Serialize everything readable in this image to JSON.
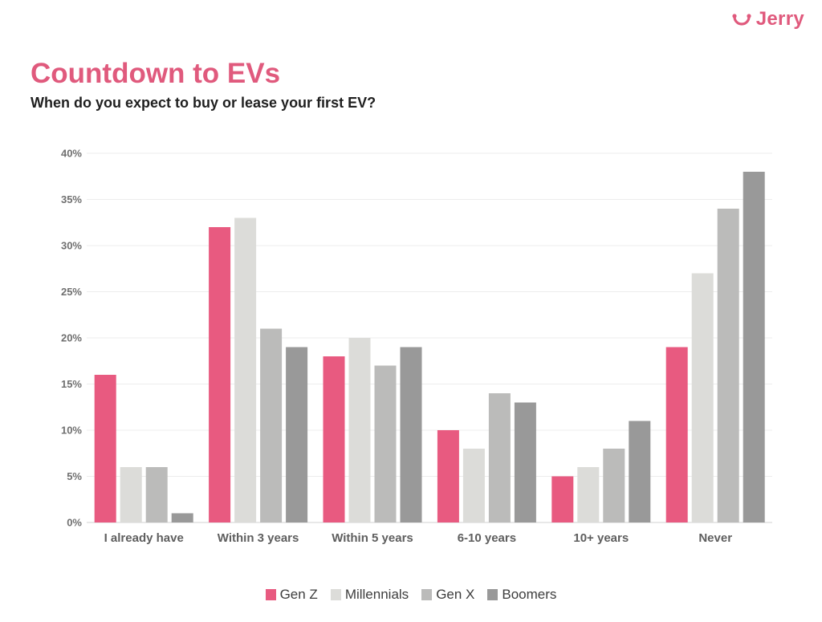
{
  "brand": {
    "name": "Jerry",
    "color": "#e05a7d",
    "icon": "jerry-logo-icon"
  },
  "header": {
    "title": "Countdown to EVs",
    "subtitle": "When do you expect to buy or lease your first EV?"
  },
  "chart_data": {
    "type": "bar",
    "categories": [
      "I already have",
      "Within 3 years",
      "Within 5 years",
      "6-10 years",
      "10+ years",
      "Never"
    ],
    "series": [
      {
        "name": "Gen Z",
        "color": "#e85a80",
        "values": [
          16,
          32,
          18,
          10,
          5,
          19
        ]
      },
      {
        "name": "Millennials",
        "color": "#dcdcd9",
        "values": [
          6,
          33,
          20,
          8,
          6,
          27
        ]
      },
      {
        "name": "Gen X",
        "color": "#bbbbba",
        "values": [
          6,
          21,
          17,
          14,
          8,
          34
        ]
      },
      {
        "name": "Boomers",
        "color": "#999999",
        "values": [
          1,
          19,
          19,
          13,
          11,
          38
        ]
      }
    ],
    "yticks": [
      "0%",
      "5%",
      "10%",
      "15%",
      "20%",
      "25%",
      "30%",
      "35%",
      "40%"
    ],
    "ylim": [
      0,
      40
    ],
    "xlabel": "",
    "ylabel": "",
    "grid": true,
    "legend_position": "bottom"
  }
}
